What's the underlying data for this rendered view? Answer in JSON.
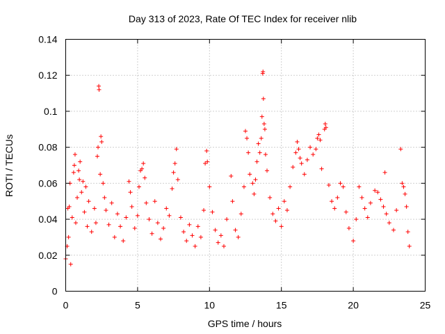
{
  "chart_data": {
    "type": "scatter",
    "title": "Day 313 of 2023, Rate Of TEC Index for receiver nlib",
    "xlabel": "GPS time / hours",
    "ylabel": "ROTI / TECUs",
    "xlim": [
      0,
      25
    ],
    "ylim": [
      0,
      0.14
    ],
    "grid": true,
    "marker": "+",
    "color": "#ff0000",
    "x_ticks": [
      0,
      5,
      10,
      15,
      20,
      25
    ],
    "x_tick_labels": [
      "0",
      "5",
      "10",
      "15",
      "20",
      "25"
    ],
    "y_ticks": [
      0,
      0.02,
      0.04,
      0.06,
      0.08,
      0.1,
      0.12,
      0.14
    ],
    "y_tick_labels": [
      "0",
      "0.02",
      "0.04",
      "0.06",
      "0.08",
      "0.1",
      "0.12",
      "0.14"
    ],
    "series": [
      {
        "name": "ROTI",
        "points": [
          [
            0.0,
            0.018
          ],
          [
            0.1,
            0.025
          ],
          [
            0.15,
            0.046
          ],
          [
            0.2,
            0.03
          ],
          [
            0.25,
            0.047
          ],
          [
            0.3,
            0.06
          ],
          [
            0.35,
            0.015
          ],
          [
            0.45,
            0.041
          ],
          [
            0.55,
            0.066
          ],
          [
            0.6,
            0.07
          ],
          [
            0.65,
            0.076
          ],
          [
            0.7,
            0.038
          ],
          [
            0.8,
            0.052
          ],
          [
            0.9,
            0.067
          ],
          [
            0.95,
            0.062
          ],
          [
            1.0,
            0.072
          ],
          [
            1.1,
            0.055
          ],
          [
            1.2,
            0.061
          ],
          [
            1.3,
            0.044
          ],
          [
            1.4,
            0.058
          ],
          [
            1.5,
            0.036
          ],
          [
            1.6,
            0.05
          ],
          [
            1.8,
            0.033
          ],
          [
            2.0,
            0.046
          ],
          [
            2.1,
            0.038
          ],
          [
            2.2,
            0.075
          ],
          [
            2.25,
            0.08
          ],
          [
            2.3,
            0.114
          ],
          [
            2.32,
            0.112
          ],
          [
            2.4,
            0.065
          ],
          [
            2.45,
            0.086
          ],
          [
            2.5,
            0.083
          ],
          [
            2.6,
            0.06
          ],
          [
            2.7,
            0.052
          ],
          [
            2.8,
            0.045
          ],
          [
            3.0,
            0.037
          ],
          [
            3.2,
            0.049
          ],
          [
            3.4,
            0.03
          ],
          [
            3.6,
            0.043
          ],
          [
            3.8,
            0.036
          ],
          [
            4.0,
            0.028
          ],
          [
            4.2,
            0.041
          ],
          [
            4.4,
            0.061
          ],
          [
            4.5,
            0.055
          ],
          [
            4.6,
            0.047
          ],
          [
            4.8,
            0.035
          ],
          [
            5.0,
            0.042
          ],
          [
            5.1,
            0.058
          ],
          [
            5.2,
            0.067
          ],
          [
            5.3,
            0.068
          ],
          [
            5.4,
            0.071
          ],
          [
            5.5,
            0.063
          ],
          [
            5.6,
            0.049
          ],
          [
            5.8,
            0.04
          ],
          [
            6.0,
            0.032
          ],
          [
            6.2,
            0.05
          ],
          [
            6.4,
            0.038
          ],
          [
            6.6,
            0.029
          ],
          [
            6.8,
            0.035
          ],
          [
            7.0,
            0.046
          ],
          [
            7.2,
            0.042
          ],
          [
            7.4,
            0.057
          ],
          [
            7.5,
            0.066
          ],
          [
            7.6,
            0.071
          ],
          [
            7.7,
            0.079
          ],
          [
            7.8,
            0.062
          ],
          [
            8.0,
            0.041
          ],
          [
            8.2,
            0.033
          ],
          [
            8.4,
            0.028
          ],
          [
            8.6,
            0.037
          ],
          [
            8.8,
            0.031
          ],
          [
            9.0,
            0.025
          ],
          [
            9.2,
            0.036
          ],
          [
            9.4,
            0.03
          ],
          [
            9.6,
            0.045
          ],
          [
            9.7,
            0.071
          ],
          [
            9.8,
            0.078
          ],
          [
            9.85,
            0.072
          ],
          [
            10.0,
            0.058
          ],
          [
            10.2,
            0.044
          ],
          [
            10.4,
            0.034
          ],
          [
            10.6,
            0.027
          ],
          [
            10.8,
            0.031
          ],
          [
            11.0,
            0.025
          ],
          [
            11.2,
            0.04
          ],
          [
            11.5,
            0.064
          ],
          [
            11.6,
            0.05
          ],
          [
            11.8,
            0.034
          ],
          [
            12.0,
            0.03
          ],
          [
            12.2,
            0.043
          ],
          [
            12.4,
            0.058
          ],
          [
            12.5,
            0.089
          ],
          [
            12.6,
            0.085
          ],
          [
            12.7,
            0.077
          ],
          [
            12.8,
            0.065
          ],
          [
            13.0,
            0.06
          ],
          [
            13.1,
            0.054
          ],
          [
            13.2,
            0.062
          ],
          [
            13.3,
            0.072
          ],
          [
            13.4,
            0.082
          ],
          [
            13.5,
            0.077
          ],
          [
            13.6,
            0.085
          ],
          [
            13.65,
            0.097
          ],
          [
            13.7,
            0.121
          ],
          [
            13.72,
            0.122
          ],
          [
            13.75,
            0.107
          ],
          [
            13.8,
            0.093
          ],
          [
            13.85,
            0.09
          ],
          [
            13.9,
            0.076
          ],
          [
            14.0,
            0.067
          ],
          [
            14.2,
            0.052
          ],
          [
            14.4,
            0.043
          ],
          [
            14.6,
            0.039
          ],
          [
            14.8,
            0.046
          ],
          [
            15.0,
            0.036
          ],
          [
            15.2,
            0.05
          ],
          [
            15.4,
            0.045
          ],
          [
            15.6,
            0.058
          ],
          [
            15.8,
            0.069
          ],
          [
            16.0,
            0.077
          ],
          [
            16.1,
            0.083
          ],
          [
            16.2,
            0.079
          ],
          [
            16.3,
            0.074
          ],
          [
            16.4,
            0.071
          ],
          [
            16.6,
            0.065
          ],
          [
            16.8,
            0.073
          ],
          [
            17.0,
            0.08
          ],
          [
            17.2,
            0.076
          ],
          [
            17.4,
            0.079
          ],
          [
            17.5,
            0.085
          ],
          [
            17.6,
            0.087
          ],
          [
            17.7,
            0.084
          ],
          [
            17.8,
            0.068
          ],
          [
            18.0,
            0.09
          ],
          [
            18.05,
            0.093
          ],
          [
            18.1,
            0.091
          ],
          [
            18.3,
            0.059
          ],
          [
            18.5,
            0.05
          ],
          [
            18.7,
            0.046
          ],
          [
            18.9,
            0.052
          ],
          [
            19.1,
            0.06
          ],
          [
            19.3,
            0.058
          ],
          [
            19.5,
            0.044
          ],
          [
            19.7,
            0.035
          ],
          [
            20.0,
            0.028
          ],
          [
            20.2,
            0.04
          ],
          [
            20.4,
            0.058
          ],
          [
            20.6,
            0.052
          ],
          [
            20.8,
            0.046
          ],
          [
            21.0,
            0.041
          ],
          [
            21.2,
            0.049
          ],
          [
            21.5,
            0.056
          ],
          [
            21.7,
            0.055
          ],
          [
            21.9,
            0.051
          ],
          [
            22.1,
            0.047
          ],
          [
            22.2,
            0.066
          ],
          [
            22.3,
            0.043
          ],
          [
            22.5,
            0.038
          ],
          [
            22.8,
            0.034
          ],
          [
            23.0,
            0.045
          ],
          [
            23.3,
            0.079
          ],
          [
            23.4,
            0.06
          ],
          [
            23.5,
            0.058
          ],
          [
            23.6,
            0.054
          ],
          [
            23.7,
            0.047
          ],
          [
            23.8,
            0.033
          ],
          [
            23.9,
            0.025
          ]
        ]
      }
    ]
  }
}
